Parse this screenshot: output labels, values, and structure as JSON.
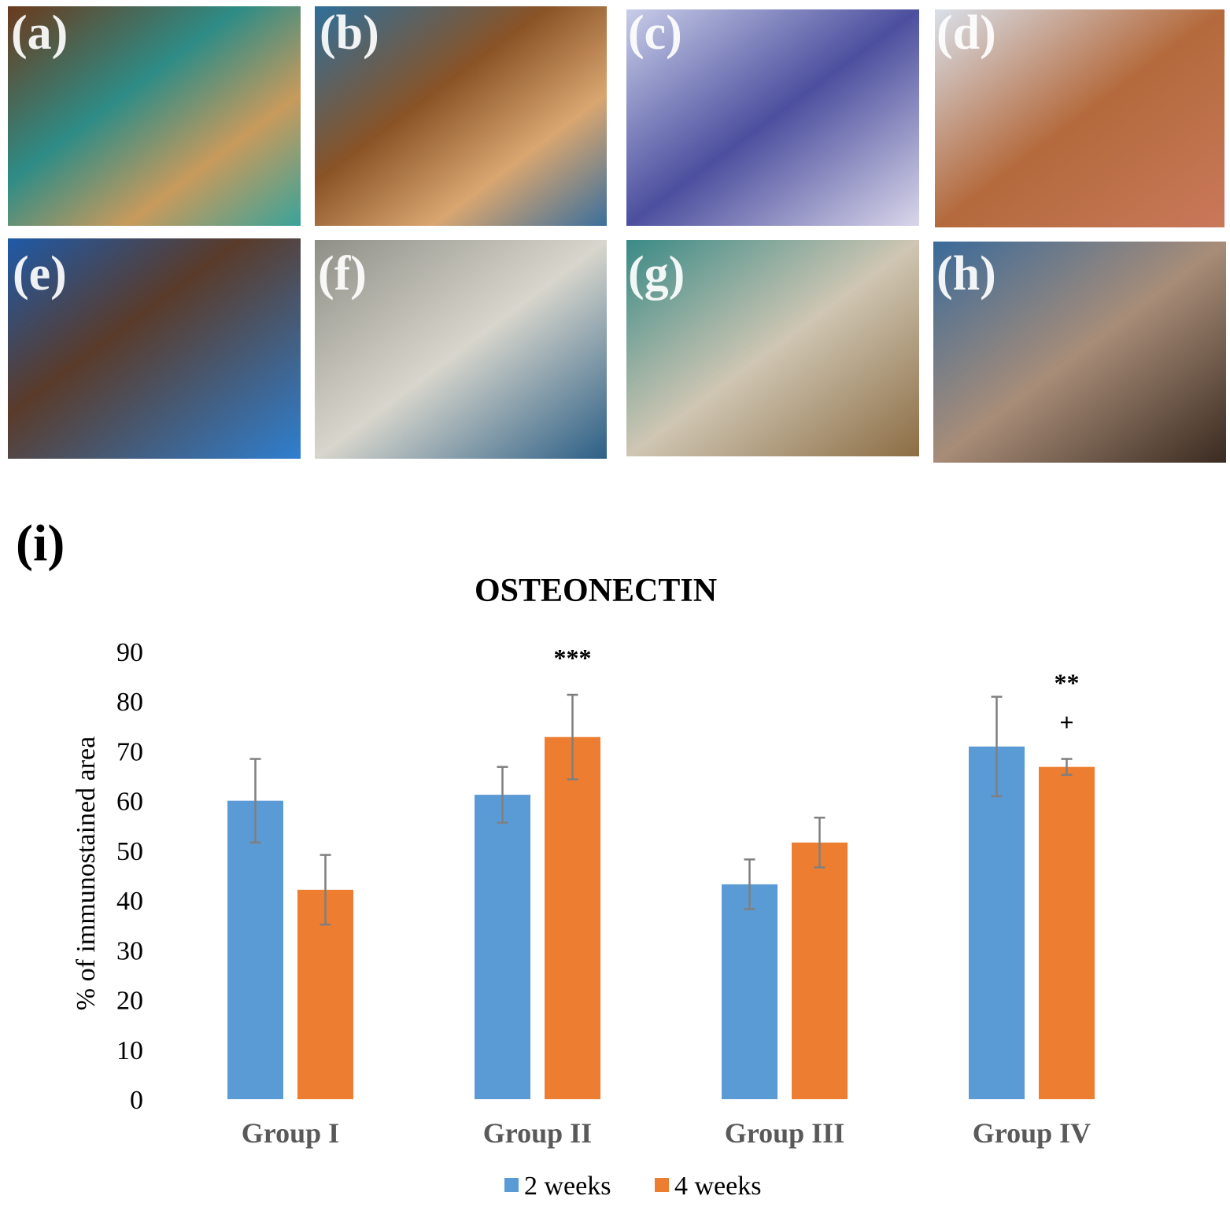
{
  "panels": [
    "(a)",
    "(b)",
    "(c)",
    "(d)",
    "(e)",
    "(f)",
    "(g)",
    "(h)"
  ],
  "figure_label": "(i)",
  "chart_data": {
    "type": "bar",
    "title": "OSTEONECTIN",
    "ylabel": "% of immunostained area",
    "categories": [
      "Group I",
      "Group II",
      "Group III",
      "Group IV"
    ],
    "series": [
      {
        "name": "2 weeks",
        "color": "#5b9bd5",
        "values": [
          60.0,
          61.2,
          43.2,
          70.9
        ],
        "errors": [
          8.4,
          5.6,
          5.0,
          10.0
        ],
        "annotations": [
          null,
          null,
          null,
          null
        ]
      },
      {
        "name": "4 weeks",
        "color": "#ed7d31",
        "values": [
          42.1,
          72.8,
          51.6,
          66.8
        ],
        "errors": [
          7.0,
          8.5,
          5.0,
          1.6
        ],
        "annotations": [
          null,
          [
            "***"
          ],
          null,
          [
            "**",
            "+"
          ]
        ]
      }
    ],
    "ylim": [
      0,
      90
    ],
    "yticks": [
      0,
      10,
      20,
      30,
      40,
      50,
      60,
      70,
      80,
      90
    ],
    "grid": false,
    "legend": "bottom"
  }
}
